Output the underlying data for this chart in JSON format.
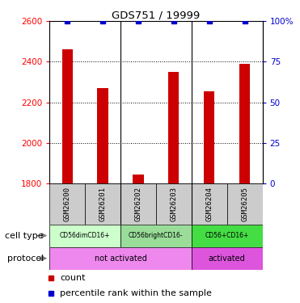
{
  "title": "GDS751 / 19999",
  "samples": [
    "GSM26200",
    "GSM26201",
    "GSM26202",
    "GSM26203",
    "GSM26204",
    "GSM26205"
  ],
  "counts": [
    2460,
    2270,
    1845,
    2350,
    2255,
    2390
  ],
  "percentile_ranks": [
    100,
    100,
    100,
    100,
    100,
    100
  ],
  "ylim_left": [
    1800,
    2600
  ],
  "ylim_right": [
    0,
    100
  ],
  "yticks_left": [
    1800,
    2000,
    2200,
    2400,
    2600
  ],
  "yticks_right": [
    0,
    25,
    50,
    75,
    100
  ],
  "ytick_labels_right": [
    "0",
    "25",
    "50",
    "75",
    "100%"
  ],
  "bar_color": "#cc0000",
  "dot_color": "#0000cc",
  "bar_width": 0.3,
  "vline_boundaries": [
    1.5,
    3.5
  ],
  "dotted_gridlines": [
    2000,
    2200,
    2400
  ],
  "sample_box_color": "#cccccc",
  "cell_type_groups": [
    {
      "label": "CD56dimCD16+",
      "start": 0,
      "end": 2,
      "color": "#ccffcc"
    },
    {
      "label": "CD56brightCD16-",
      "start": 2,
      "end": 4,
      "color": "#99dd99"
    },
    {
      "label": "CD56+CD16+",
      "start": 4,
      "end": 6,
      "color": "#44dd44"
    }
  ],
  "protocol_groups": [
    {
      "label": "not activated",
      "start": 0,
      "end": 4,
      "color": "#ee88ee"
    },
    {
      "label": "activated",
      "start": 4,
      "end": 6,
      "color": "#dd55dd"
    }
  ],
  "cell_type_label": "cell type",
  "protocol_label": "protocol",
  "legend_count_color": "#cc0000",
  "legend_dot_color": "#0000cc",
  "legend_count_label": "count",
  "legend_dot_label": "percentile rank within the sample"
}
